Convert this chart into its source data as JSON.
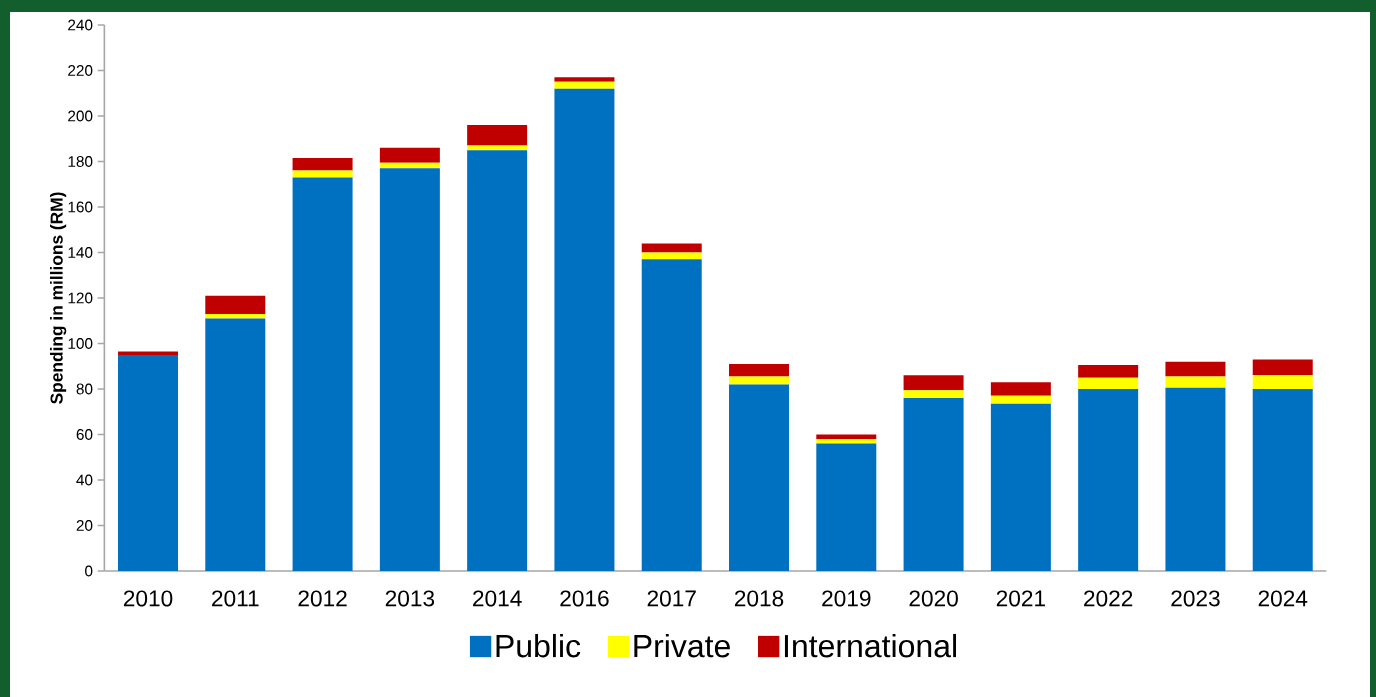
{
  "chart_data": {
    "type": "bar",
    "stacked": true,
    "ylabel": "Spending in millions (RM)",
    "categories": [
      "2010",
      "2011",
      "2012",
      "2013",
      "2014",
      "2016",
      "2017",
      "2018",
      "2019",
      "2020",
      "2021",
      "2022",
      "2023",
      "2024"
    ],
    "series": [
      {
        "name": "Public",
        "color": "#0070c0",
        "values": [
          95,
          111,
          173,
          177,
          185,
          212,
          137,
          82,
          56,
          76,
          73.5,
          80,
          80.5,
          80
        ]
      },
      {
        "name": "Private",
        "color": "#ffff00",
        "values": [
          0,
          2,
          3,
          2.5,
          2,
          3,
          3,
          3.5,
          2,
          3.5,
          3.5,
          5,
          5,
          6
        ]
      },
      {
        "name": "International",
        "color": "#c00000",
        "values": [
          1.5,
          8,
          5.5,
          6.5,
          9,
          2,
          4,
          5.5,
          2,
          6.5,
          6,
          5.5,
          6.5,
          7
        ]
      }
    ],
    "ylim": [
      0,
      240
    ],
    "yticks": [
      0,
      20,
      40,
      60,
      80,
      100,
      120,
      140,
      160,
      180,
      200,
      220,
      240
    ],
    "legend": "bottom"
  }
}
